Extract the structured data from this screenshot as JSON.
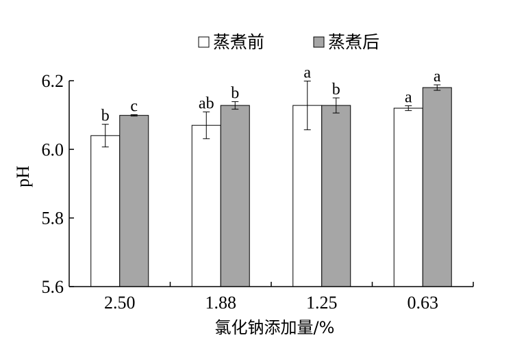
{
  "chart_data": {
    "type": "bar",
    "categories": [
      "2.50",
      "1.88",
      "1.25",
      "0.63"
    ],
    "series": [
      {
        "name": "蒸煮前",
        "color": "#ffffff",
        "values": [
          6.04,
          6.07,
          6.128,
          6.12
        ],
        "errors": [
          0.033,
          0.039,
          0.071,
          0.007
        ],
        "letters": [
          "b",
          "ab",
          "a",
          "a"
        ]
      },
      {
        "name": "蒸煮后",
        "color": "#a6a6a6",
        "values": [
          6.099,
          6.128,
          6.128,
          6.18
        ],
        "errors": [
          0.002,
          0.011,
          0.022,
          0.008
        ],
        "letters": [
          "c",
          "b",
          "b",
          "a"
        ]
      }
    ],
    "title": "",
    "xlabel": "氯化钠添加量/%",
    "ylabel": "pH",
    "ylim": [
      5.6,
      6.2
    ],
    "yticks": [
      "5.6",
      "5.8",
      "6.0",
      "6.2"
    ],
    "grid": false,
    "legend_position": "top"
  }
}
